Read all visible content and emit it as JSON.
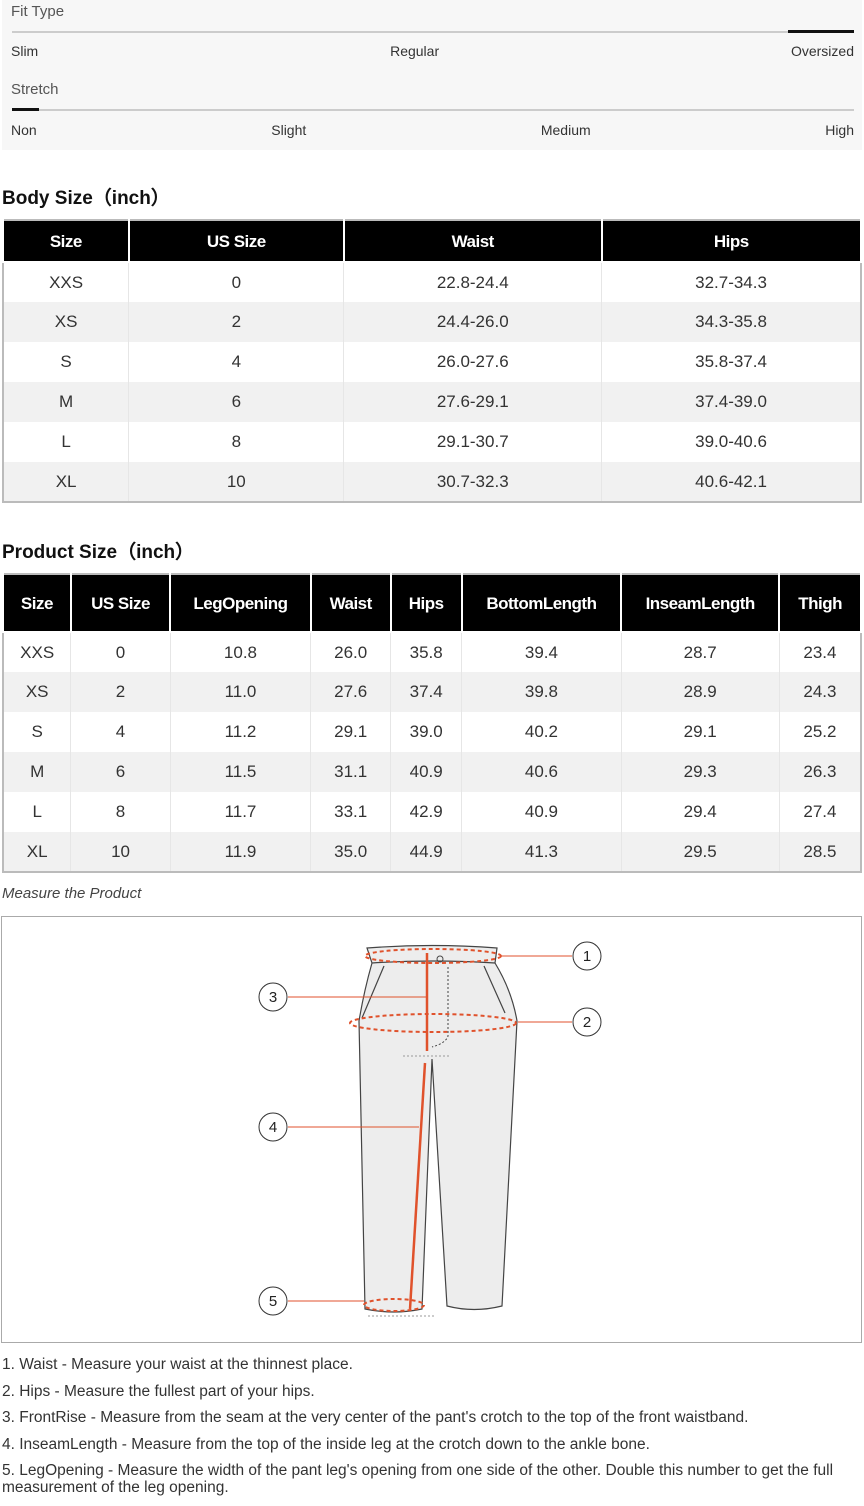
{
  "fit_type": {
    "label": "Fit Type",
    "options": [
      "Slim",
      "Regular",
      "Oversized"
    ],
    "selected": "Oversized"
  },
  "stretch": {
    "label": "Stretch",
    "options": [
      "Non",
      "Slight",
      "Medium",
      "High"
    ],
    "selected": "Non"
  },
  "body_size": {
    "title": "Body Size（inch）",
    "headers": [
      "Size",
      "US Size",
      "Waist",
      "Hips"
    ],
    "rows": [
      [
        "XXS",
        "0",
        "22.8-24.4",
        "32.7-34.3"
      ],
      [
        "XS",
        "2",
        "24.4-26.0",
        "34.3-35.8"
      ],
      [
        "S",
        "4",
        "26.0-27.6",
        "35.8-37.4"
      ],
      [
        "M",
        "6",
        "27.6-29.1",
        "37.4-39.0"
      ],
      [
        "L",
        "8",
        "29.1-30.7",
        "39.0-40.6"
      ],
      [
        "XL",
        "10",
        "30.7-32.3",
        "40.6-42.1"
      ]
    ]
  },
  "product_size": {
    "title": "Product Size（inch）",
    "headers": [
      "Size",
      "US Size",
      "LegOpening",
      "Waist",
      "Hips",
      "BottomLength",
      "InseamLength",
      "Thigh"
    ],
    "rows": [
      [
        "XXS",
        "0",
        "10.8",
        "26.0",
        "35.8",
        "39.4",
        "28.7",
        "23.4"
      ],
      [
        "XS",
        "2",
        "11.0",
        "27.6",
        "37.4",
        "39.8",
        "28.9",
        "24.3"
      ],
      [
        "S",
        "4",
        "11.2",
        "29.1",
        "39.0",
        "40.2",
        "29.1",
        "25.2"
      ],
      [
        "M",
        "6",
        "11.5",
        "31.1",
        "40.9",
        "40.6",
        "29.3",
        "26.3"
      ],
      [
        "L",
        "8",
        "11.7",
        "33.1",
        "42.9",
        "40.9",
        "29.4",
        "27.4"
      ],
      [
        "XL",
        "10",
        "11.9",
        "35.0",
        "44.9",
        "41.3",
        "29.5",
        "28.5"
      ]
    ]
  },
  "measure": {
    "title": "Measure the Product",
    "callouts": [
      "1",
      "2",
      "3",
      "4",
      "5"
    ],
    "accent": "#e0522c"
  },
  "notes": [
    "1. Waist - Measure your waist at the thinnest place.",
    "2. Hips - Measure the fullest part of your hips.",
    "3. FrontRise - Measure from the seam at the very center of the pant's crotch to the top of the front waistband.",
    "4. InseamLength - Measure from the top of the inside leg at the crotch down to the ankle bone.",
    "5. LegOpening - Measure the width of the pant leg's opening from one side of the other. Double this number to get the full measurement of the leg opening."
  ]
}
